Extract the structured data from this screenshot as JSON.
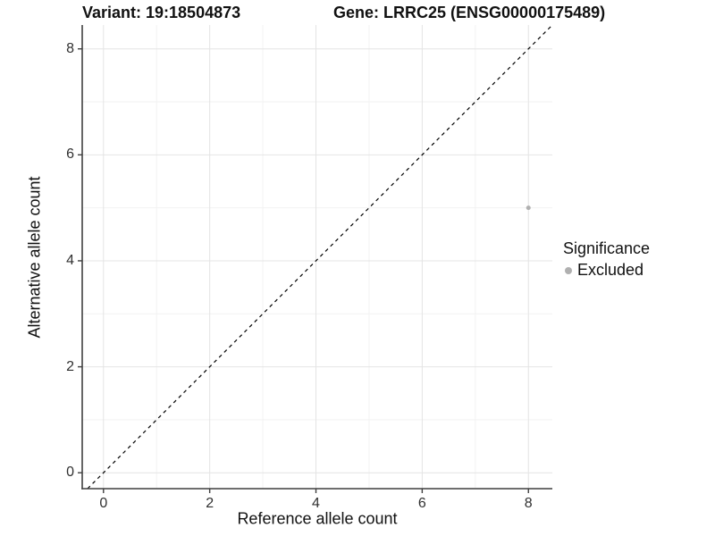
{
  "titles": {
    "left": "Variant: 19:18504873",
    "right": "Gene: LRRC25 (ENSG00000175489)"
  },
  "chart_data": {
    "type": "scatter",
    "xlabel": "Reference allele count",
    "ylabel": "Alternative allele count",
    "xlim": [
      -0.4,
      8.45
    ],
    "ylim": [
      -0.3,
      8.45
    ],
    "x_ticks": [
      0,
      2,
      4,
      6,
      8
    ],
    "y_ticks": [
      0,
      2,
      4,
      6,
      8
    ],
    "x_minor_ticks": [
      1,
      3,
      5,
      7
    ],
    "y_minor_ticks": [
      1,
      3,
      5,
      7
    ],
    "grid": true,
    "points": [
      {
        "x": 8,
        "y": 5,
        "series": "Excluded"
      }
    ],
    "reference_line": {
      "type": "identity",
      "style": "dashed",
      "slope": 1,
      "intercept": 0
    },
    "legend": {
      "title": "Significance",
      "position": "right",
      "entries": [
        {
          "label": "Excluded",
          "color": "#b0b0b0"
        }
      ]
    },
    "colors": {
      "point": "#b0b0b0",
      "grid_major": "#e4e4e4",
      "grid_minor": "#f2f2f2",
      "axis": "#3f3f3f",
      "reference_line": "#000000",
      "tick_label": "#303030",
      "text": "#111111"
    }
  }
}
